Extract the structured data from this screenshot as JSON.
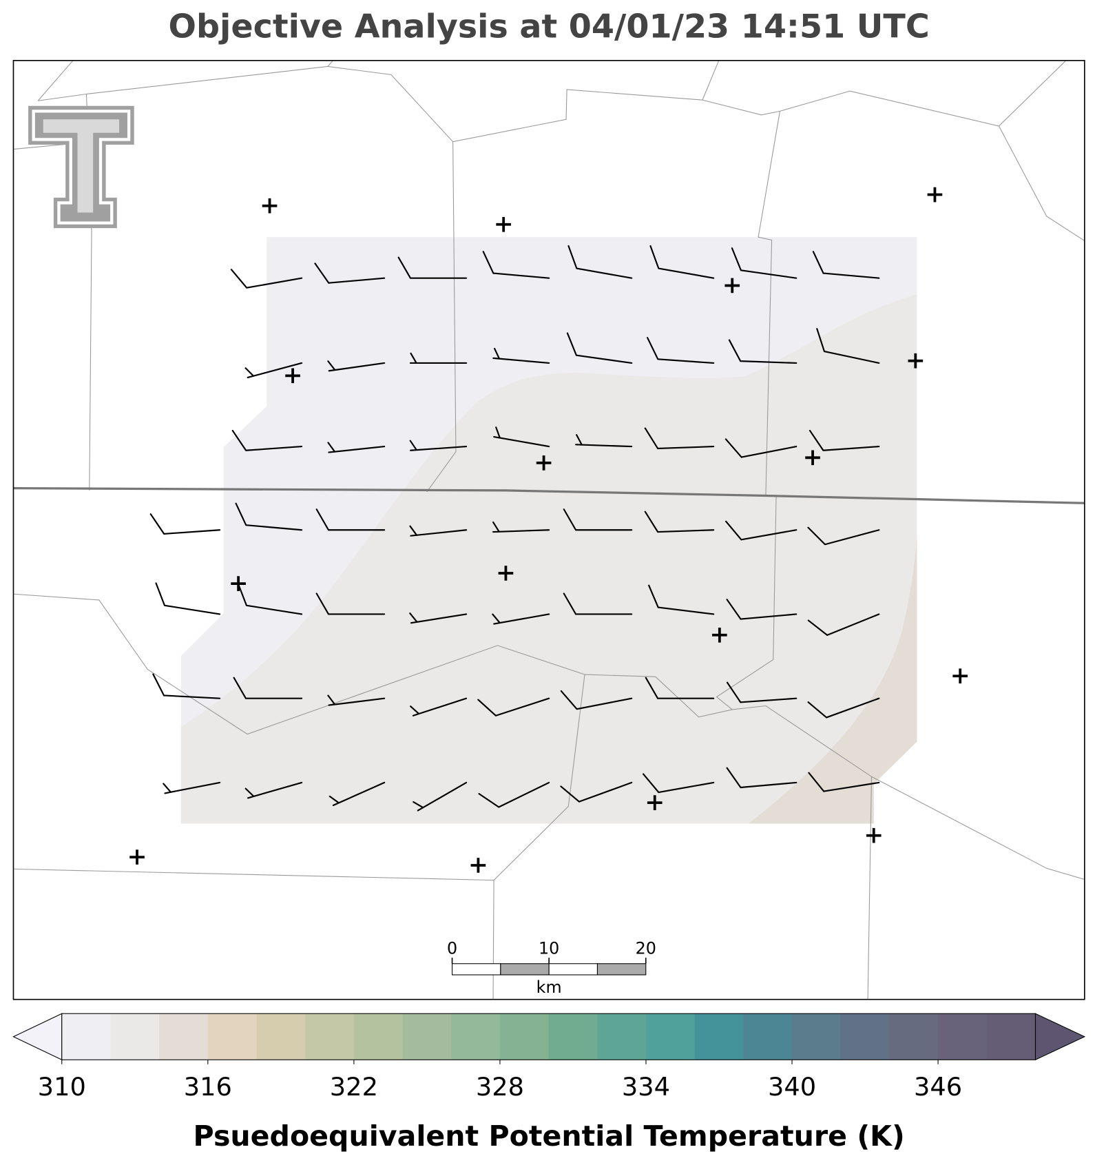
{
  "title": "Objective Analysis at 04/01/23 14:51 UTC",
  "wind": {
    "directions": [
      [
        null,
        260,
        265,
        270,
        275,
        280,
        280,
        278,
        275
      ],
      [
        null,
        255,
        262,
        270,
        275,
        278,
        274,
        272,
        282
      ],
      [
        null,
        266,
        264,
        266,
        280,
        272,
        268,
        259,
        266
      ],
      [
        266,
        275,
        270,
        264,
        268,
        270,
        268,
        260,
        255
      ],
      [
        279,
        279,
        270,
        261,
        260,
        270,
        277,
        265,
        248
      ],
      [
        273,
        270,
        263,
        252,
        252,
        259,
        270,
        266,
        250
      ],
      [
        259,
        254,
        246,
        240,
        244,
        250,
        260,
        265,
        261
      ]
    ],
    "speeds": [
      [
        null,
        10,
        10,
        10,
        10,
        10,
        10,
        10,
        10
      ],
      [
        null,
        5,
        5,
        5,
        5,
        10,
        10,
        10,
        10
      ],
      [
        null,
        10,
        5,
        5,
        5,
        5,
        10,
        10,
        10
      ],
      [
        10,
        10,
        10,
        5,
        5,
        10,
        10,
        10,
        10
      ],
      [
        10,
        10,
        10,
        5,
        5,
        10,
        10,
        10,
        10
      ],
      [
        10,
        10,
        5,
        5,
        10,
        10,
        10,
        10,
        10
      ],
      [
        5,
        5,
        5,
        5,
        10,
        10,
        10,
        10,
        10
      ]
    ]
  },
  "scale_bar": {
    "ticks": [
      0,
      10,
      20
    ],
    "unit": "km"
  },
  "colorbar": {
    "label": "Psuedoequivalent Potential Temperature (K)",
    "bounds": [
      310,
      312,
      314,
      316,
      318,
      320,
      322,
      324,
      326,
      328,
      330,
      332,
      334,
      336,
      338,
      340,
      342,
      344,
      346,
      348,
      350
    ],
    "colors": [
      "#efeef3",
      "#ebe8e8",
      "#e4ddd5",
      "#e2d4bf",
      "#d5cdad",
      "#c5c8a6",
      "#b4c2a0",
      "#a4bc9d",
      "#93b89a",
      "#85b293",
      "#71ab90",
      "#5fa596",
      "#50a09b",
      "#45939a",
      "#4c8593",
      "#5a7c8c",
      "#617287",
      "#676b80",
      "#68637a",
      "#655c76"
    ],
    "under_color": "#f3f2f8",
    "over_color": "#5e5670",
    "ticks": [
      310,
      316,
      322,
      328,
      334,
      340,
      346
    ]
  }
}
